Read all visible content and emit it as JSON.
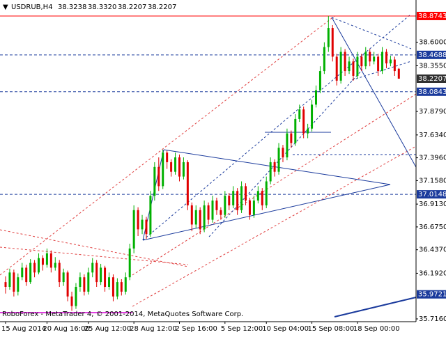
{
  "chart_data": {
    "type": "candlestick",
    "symbol": "USDRUB,H4",
    "header_values": [
      "38.3238",
      "38.3320",
      "38.2207",
      "38.2207"
    ],
    "footer": "RoboForex - MetaTrader 4, © 2001-2014, MetaQuotes Software Corp.",
    "up_color": "#00b000",
    "down_color": "#e00000",
    "ylim": [
      35.687,
      39.041
    ],
    "yticks": [
      {
        "value": 38.6,
        "label": "38.6000"
      },
      {
        "value": 38.355,
        "label": "38.3550"
      },
      {
        "value": 37.879,
        "label": "37.8790"
      },
      {
        "value": 37.634,
        "label": "37.6340"
      },
      {
        "value": 37.396,
        "label": "37.3960"
      },
      {
        "value": 37.158,
        "label": "37.1580"
      },
      {
        "value": 36.913,
        "label": "36.9130"
      },
      {
        "value": 36.675,
        "label": "36.6750"
      },
      {
        "value": 36.437,
        "label": "36.4370"
      },
      {
        "value": 36.192,
        "label": "36.1920"
      },
      {
        "value": 35.716,
        "label": "35.7160"
      }
    ],
    "levels": [
      {
        "value": 38.8743,
        "color": "#ff0000",
        "style": "solid"
      },
      {
        "value": 38.4688,
        "color": "#1a3a9c",
        "style": "dashed"
      },
      {
        "value": 38.2207,
        "color": "#303030",
        "style": "none"
      },
      {
        "value": 38.0843,
        "color": "#1a3a9c",
        "style": "dashed"
      },
      {
        "value": 37.0148,
        "color": "#1a3a9c",
        "style": "dashed"
      },
      {
        "value": 35.9721,
        "color": "#1a3a9c",
        "style": "none"
      }
    ],
    "categories": [
      "15 Aug 2014",
      null,
      null,
      null,
      null,
      null,
      null,
      null,
      null,
      null,
      "20 Aug 16:00",
      null,
      null,
      null,
      null,
      null,
      null,
      null,
      null,
      null,
      "25 Aug 12:00",
      null,
      null,
      null,
      null,
      null,
      null,
      null,
      null,
      null,
      null,
      "28 Aug 12:00",
      null,
      null,
      null,
      null,
      null,
      null,
      null,
      null,
      null,
      null,
      "2 Sep 16:00",
      null,
      null,
      null,
      null,
      null,
      null,
      null,
      null,
      null,
      null,
      "5 Sep 12:00",
      null,
      null,
      null,
      null,
      null,
      null,
      null,
      null,
      null,
      "10 Sep 04:00",
      null,
      null,
      null,
      null,
      null,
      null,
      null,
      null,
      null,
      null,
      "15 Sep 08:00",
      null,
      null,
      null,
      null,
      null,
      null,
      null,
      null,
      null,
      null,
      "18 Sep 00:00",
      null,
      null,
      null,
      null,
      null,
      null,
      null,
      null,
      null,
      null
    ],
    "candles": [
      [
        36.1,
        36.16,
        35.98,
        36.05
      ],
      [
        36.05,
        36.24,
        36.02,
        36.2
      ],
      [
        36.2,
        36.23,
        35.95,
        36.0
      ],
      [
        36.0,
        36.19,
        35.96,
        36.15
      ],
      [
        36.15,
        36.3,
        36.12,
        36.25
      ],
      [
        36.25,
        36.28,
        36.06,
        36.1
      ],
      [
        36.1,
        36.34,
        36.08,
        36.3
      ],
      [
        36.3,
        36.33,
        36.15,
        36.2
      ],
      [
        36.2,
        36.4,
        36.18,
        36.35
      ],
      [
        36.35,
        36.38,
        36.22,
        36.28
      ],
      [
        36.28,
        36.45,
        36.25,
        36.4
      ],
      [
        36.4,
        36.43,
        36.2,
        36.25
      ],
      [
        36.25,
        36.36,
        36.22,
        36.3
      ],
      [
        36.3,
        36.33,
        36.05,
        36.1
      ],
      [
        36.1,
        36.24,
        36.06,
        36.2
      ],
      [
        36.2,
        36.22,
        35.9,
        35.95
      ],
      [
        35.95,
        36.0,
        35.8,
        35.85
      ],
      [
        35.85,
        36.09,
        35.82,
        36.05
      ],
      [
        36.05,
        36.2,
        36.0,
        36.15
      ],
      [
        36.15,
        36.18,
        35.96,
        36.0
      ],
      [
        36.0,
        36.25,
        35.97,
        36.2
      ],
      [
        36.2,
        36.35,
        36.15,
        36.3
      ],
      [
        36.3,
        36.33,
        36.05,
        36.1
      ],
      [
        36.1,
        36.29,
        36.07,
        36.25
      ],
      [
        36.25,
        36.27,
        36.0,
        36.05
      ],
      [
        36.05,
        36.2,
        36.02,
        36.15
      ],
      [
        36.15,
        36.18,
        35.9,
        35.95
      ],
      [
        35.95,
        36.14,
        35.92,
        36.1
      ],
      [
        36.1,
        36.13,
        35.96,
        36.0
      ],
      [
        36.0,
        36.2,
        35.97,
        36.15
      ],
      [
        36.15,
        36.5,
        36.12,
        36.45
      ],
      [
        36.45,
        36.9,
        36.4,
        36.85
      ],
      [
        36.85,
        36.88,
        36.58,
        36.65
      ],
      [
        36.65,
        36.8,
        36.6,
        36.75
      ],
      [
        36.75,
        36.78,
        36.55,
        36.6
      ],
      [
        36.6,
        37.05,
        36.57,
        37.0
      ],
      [
        37.0,
        37.35,
        36.95,
        37.3
      ],
      [
        37.3,
        37.4,
        37.05,
        37.1
      ],
      [
        37.1,
        37.48,
        37.07,
        37.45
      ],
      [
        37.45,
        37.47,
        37.28,
        37.35
      ],
      [
        37.35,
        37.38,
        37.2,
        37.25
      ],
      [
        37.25,
        37.45,
        37.22,
        37.4
      ],
      [
        37.4,
        37.43,
        37.15,
        37.2
      ],
      [
        37.2,
        37.4,
        37.17,
        37.35
      ],
      [
        37.35,
        37.37,
        36.85,
        36.9
      ],
      [
        36.9,
        36.93,
        36.63,
        36.7
      ],
      [
        36.7,
        36.9,
        36.66,
        36.85
      ],
      [
        36.85,
        36.88,
        36.6,
        36.65
      ],
      [
        36.65,
        36.95,
        36.62,
        36.9
      ],
      [
        36.9,
        36.93,
        36.7,
        36.75
      ],
      [
        36.75,
        37.0,
        36.72,
        36.95
      ],
      [
        36.95,
        36.98,
        36.8,
        36.85
      ],
      [
        36.85,
        36.88,
        36.75,
        36.8
      ],
      [
        36.8,
        37.05,
        36.77,
        37.0
      ],
      [
        37.0,
        37.03,
        36.85,
        36.9
      ],
      [
        36.9,
        37.1,
        36.87,
        37.05
      ],
      [
        37.05,
        37.08,
        36.8,
        36.85
      ],
      [
        36.85,
        37.15,
        36.82,
        37.1
      ],
      [
        37.1,
        37.13,
        36.9,
        36.95
      ],
      [
        36.95,
        36.98,
        36.75,
        36.8
      ],
      [
        36.8,
        37.0,
        36.77,
        36.95
      ],
      [
        36.95,
        37.1,
        36.92,
        37.05
      ],
      [
        37.05,
        37.08,
        36.85,
        36.9
      ],
      [
        36.9,
        37.2,
        36.87,
        37.15
      ],
      [
        37.15,
        37.4,
        37.12,
        37.35
      ],
      [
        37.35,
        37.38,
        37.2,
        37.25
      ],
      [
        37.25,
        37.55,
        37.22,
        37.5
      ],
      [
        37.5,
        37.53,
        37.35,
        37.4
      ],
      [
        37.4,
        37.7,
        37.37,
        37.65
      ],
      [
        37.65,
        37.68,
        37.5,
        37.55
      ],
      [
        37.55,
        37.85,
        37.52,
        37.8
      ],
      [
        37.8,
        37.95,
        37.77,
        37.9
      ],
      [
        37.9,
        37.93,
        37.6,
        37.65
      ],
      [
        37.65,
        37.75,
        37.6,
        37.7
      ],
      [
        37.7,
        38.0,
        37.67,
        37.95
      ],
      [
        37.95,
        38.15,
        37.92,
        38.1
      ],
      [
        38.1,
        38.35,
        38.07,
        38.3
      ],
      [
        38.3,
        38.6,
        38.27,
        38.55
      ],
      [
        38.55,
        38.8743,
        38.5,
        38.75
      ],
      [
        38.75,
        38.78,
        38.4,
        38.45
      ],
      [
        38.45,
        38.48,
        38.15,
        38.2
      ],
      [
        38.2,
        38.55,
        38.17,
        38.5
      ],
      [
        38.5,
        38.53,
        38.25,
        38.3
      ],
      [
        38.3,
        38.45,
        38.27,
        38.4
      ],
      [
        38.4,
        38.43,
        38.2,
        38.25
      ],
      [
        38.25,
        38.5,
        38.22,
        38.45
      ],
      [
        38.45,
        38.48,
        38.3,
        38.35
      ],
      [
        38.35,
        38.55,
        38.32,
        38.5
      ],
      [
        38.5,
        38.53,
        38.35,
        38.4
      ],
      [
        38.4,
        38.5,
        38.37,
        38.45
      ],
      [
        38.45,
        38.48,
        38.25,
        38.3
      ],
      [
        38.3,
        38.55,
        38.27,
        38.5
      ],
      [
        38.5,
        38.53,
        38.33,
        38.38
      ],
      [
        38.38,
        38.46,
        38.35,
        38.42
      ],
      [
        38.42,
        38.45,
        38.25,
        38.3
      ],
      [
        38.3238,
        38.332,
        38.2207,
        38.2207
      ]
    ]
  }
}
